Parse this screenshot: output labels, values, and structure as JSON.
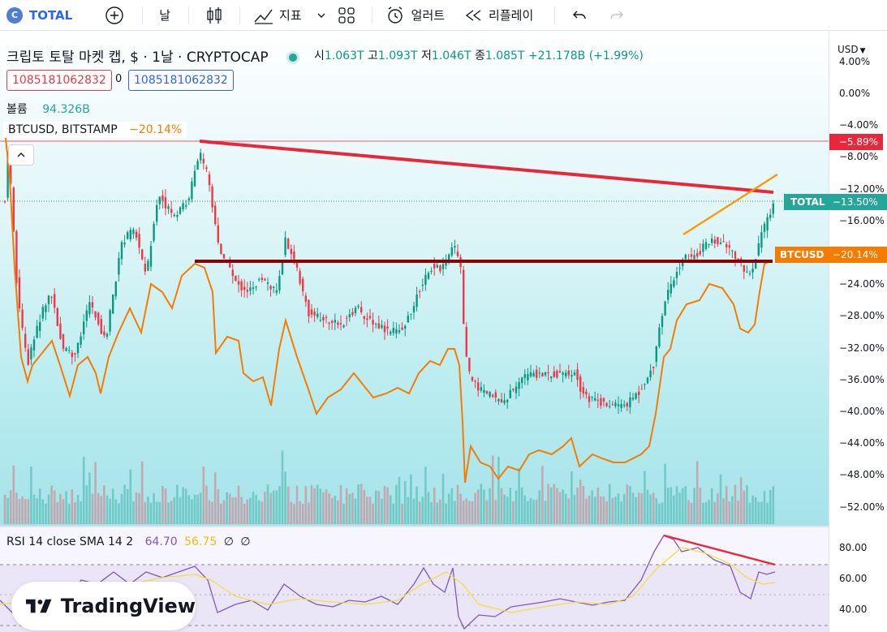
{
  "toolbar": {
    "symbol": "TOTAL",
    "interval": "날",
    "indicators_label": "지표",
    "alert_label": "얼러트",
    "replay_label": "리플레이"
  },
  "legend": {
    "title": "크립토 토탈 마켓 캡, $ · 1날 · CRYPTOCAP",
    "open_label": "시",
    "open": "1.063T",
    "high_label": "고",
    "high": "1.093T",
    "low_label": "저",
    "low": "1.046T",
    "close_label": "종",
    "close": "1.085T",
    "change": "+21.178B (+1.99%)",
    "value_box_left": "1085181062832",
    "value_box_mid": "0",
    "value_box_right": "1085181062832",
    "volume_label": "볼륨",
    "volume_value": "94.326B",
    "compare_symbol": "BTCUSD, BITSTAMP",
    "compare_value": "−20.14%"
  },
  "price_axis": {
    "currency": "USD",
    "ticks": [
      "4.00%",
      "0.00%",
      "−4.00%",
      "−8.00%",
      "−12.00%",
      "−16.00%",
      "−20.00%",
      "−24.00%",
      "−28.00%",
      "−32.00%",
      "−36.00%",
      "−40.00%",
      "−44.00%",
      "−48.00%",
      "−52.00%"
    ],
    "tick_values": [
      4,
      0,
      -4,
      -8,
      -12,
      -16,
      -20,
      -24,
      -28,
      -32,
      -36,
      -40,
      -44,
      -48,
      -52
    ],
    "badge_line": "−5.89%",
    "badge_total_label": "TOTAL",
    "badge_total_value": "−13.50%",
    "badge_btc_label": "BTCUSD",
    "badge_btc_value": "−20.14%",
    "values": {
      "line": -5.89,
      "total": -13.5,
      "btc": -20.14
    }
  },
  "rsi": {
    "label": "RSI 14 close SMA 14 2",
    "value": "64.70",
    "sma": "56.75",
    "extra1": "∅",
    "extra2": "∅",
    "ticks": [
      "80.00",
      "60.00",
      "40.00"
    ],
    "tick_values": [
      80,
      60,
      40
    ]
  },
  "watermark": "TradingView",
  "colors": {
    "up": "#089981",
    "down": "#f23645",
    "btc_line": "#f57c00",
    "trend_red": "#e8283a",
    "support_line": "#8b0000",
    "rsi_line": "#7e57c2",
    "rsi_sma": "#f0e040",
    "total_badge": "#26a69a"
  },
  "icons": [
    "plus-icon",
    "candles-icon",
    "indicators-icon",
    "chevron-down-icon",
    "layout-icon",
    "alert-icon",
    "replay-icon",
    "undo-icon",
    "redo-icon"
  ]
}
